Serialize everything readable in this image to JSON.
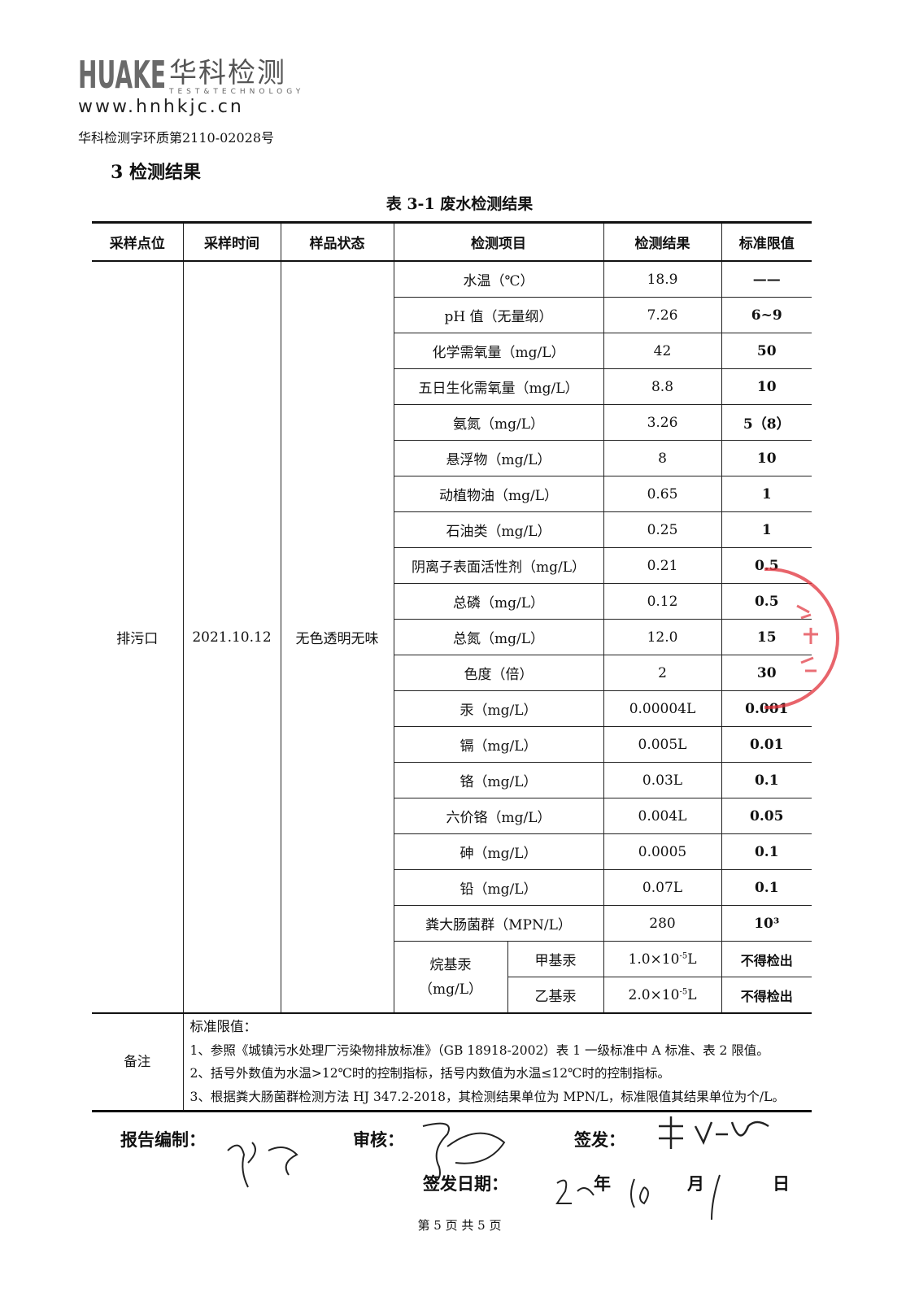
{
  "header": {
    "logo_word": "HUAKE",
    "logo_cn": "华科检测",
    "logo_sub": "TEST&TECHNOLOGY",
    "url": "www.hnhkjc.cn",
    "report_no": "华科检测字环质第2110-02028号"
  },
  "section_title": "3  检测结果",
  "table_caption": "表 3-1  废水检测结果",
  "columns": [
    "采样点位",
    "采样时间",
    "样品状态",
    "检测项目",
    "检测结果",
    "标准限值"
  ],
  "sample": {
    "point": "排污口",
    "time": "2021.10.12",
    "state": "无色透明无味"
  },
  "rows": [
    {
      "item": "水温（℃）",
      "result": "18.9",
      "limit": "——"
    },
    {
      "item": "pH 值（无量纲）",
      "result": "7.26",
      "limit": "6~9"
    },
    {
      "item": "化学需氧量（mg/L）",
      "result": "42",
      "limit": "50"
    },
    {
      "item": "五日生化需氧量（mg/L）",
      "result": "8.8",
      "limit": "10"
    },
    {
      "item": "氨氮（mg/L）",
      "result": "3.26",
      "limit": "5（8）"
    },
    {
      "item": "悬浮物（mg/L）",
      "result": "8",
      "limit": "10"
    },
    {
      "item": "动植物油（mg/L）",
      "result": "0.65",
      "limit": "1"
    },
    {
      "item": "石油类（mg/L）",
      "result": "0.25",
      "limit": "1"
    },
    {
      "item": "阴离子表面活性剂（mg/L）",
      "result": "0.21",
      "limit": "0.5"
    },
    {
      "item": "总磷（mg/L）",
      "result": "0.12",
      "limit": "0.5"
    },
    {
      "item": "总氮（mg/L）",
      "result": "12.0",
      "limit": "15"
    },
    {
      "item": "色度（倍）",
      "result": "2",
      "limit": "30"
    },
    {
      "item": "汞（mg/L）",
      "result": "0.00004L",
      "limit": "0.001"
    },
    {
      "item": "镉（mg/L）",
      "result": "0.005L",
      "limit": "0.01"
    },
    {
      "item": "铬（mg/L）",
      "result": "0.03L",
      "limit": "0.1"
    },
    {
      "item": "六价铬（mg/L）",
      "result": "0.004L",
      "limit": "0.05"
    },
    {
      "item": "砷（mg/L）",
      "result": "0.0005",
      "limit": "0.1"
    },
    {
      "item": "铅（mg/L）",
      "result": "0.07L",
      "limit": "0.1"
    },
    {
      "item": "粪大肠菌群（MPN/L）",
      "result": "280",
      "limit": "10³"
    }
  ],
  "alkyl": {
    "group": "烷基汞",
    "unit": "（mg/L）",
    "sub": [
      {
        "item": "甲基汞",
        "result_base": "1.0×10",
        "result_exp": "-5",
        "result_suffix": "L",
        "limit": "不得检出"
      },
      {
        "item": "乙基汞",
        "result_base": "2.0×10",
        "result_exp": "-5",
        "result_suffix": "L",
        "limit": "不得检出"
      }
    ]
  },
  "notes": {
    "label": "备注",
    "heading": "标准限值：",
    "lines": [
      "1、参照《城镇污水处理厂污染物排放标准》（GB 18918-2002）表 1 一级标准中 A 标准、表 2 限值。",
      "2、括号外数值为水温>12℃时的控制指标，括号内数值为水温≤12℃时的控制指标。",
      "3、根据粪大肠菌群检测方法 HJ 347.2-2018，其检测结果单位为 MPN/L，标准限值其结果单位为个/L。"
    ]
  },
  "signatures": {
    "prepared": "报告编制：",
    "reviewed": "审核：",
    "issued": "签发：",
    "date_label": "签发日期：",
    "year": "年",
    "month": "月",
    "day": "日"
  },
  "footer": "第 5 页 共 5 页",
  "colors": {
    "stamp": "#e0303a",
    "logo": "#6a6a6a"
  }
}
